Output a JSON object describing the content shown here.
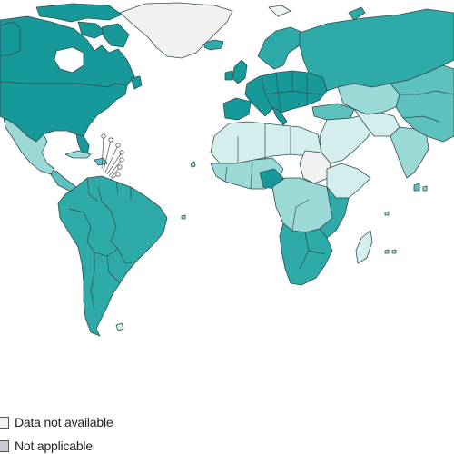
{
  "colors": {
    "ocean": "#ffffff",
    "level_1": "#d4eeee",
    "level_2": "#9ad9d6",
    "level_3": "#5dc2bd",
    "level_4": "#2eaba8",
    "level_5": "#17999a",
    "not_available": "#f0f1f0",
    "not_applicable": "#c9ccd2",
    "border": "#2f4d52"
  },
  "legend": {
    "items": [
      {
        "label": "Data not available",
        "color": "#f0f1f0"
      },
      {
        "label": "Not applicable",
        "color": "#c9ccd2"
      }
    ]
  }
}
